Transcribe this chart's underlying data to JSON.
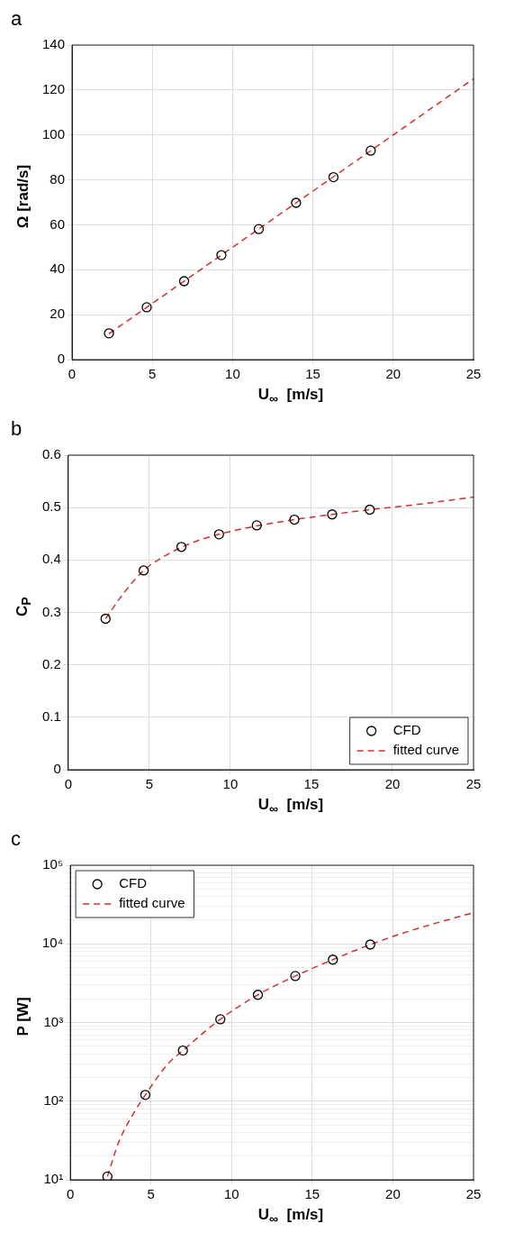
{
  "chart_data": [
    {
      "type": "scatter",
      "title": "a",
      "xlabel": "U$_{∞}$  [m/s]",
      "ylabel": "Ω [rad/s]",
      "xlim": [
        0,
        25
      ],
      "xticks": [
        0,
        5,
        10,
        15,
        20,
        25
      ],
      "ylim": [
        0,
        140
      ],
      "yticks": [
        0,
        20,
        40,
        60,
        80,
        100,
        120,
        140
      ],
      "grid": true,
      "legend": false,
      "series": [
        {
          "type": "scatter",
          "color": "#000000",
          "marker": "circle",
          "x": [
            2.3,
            4.65,
            6.98,
            9.3,
            11.63,
            13.95,
            16.28,
            18.6
          ],
          "values": [
            11.7,
            23.3,
            34.9,
            46.5,
            58.1,
            69.8,
            81.2,
            93
          ]
        },
        {
          "type": "line",
          "color": "#d03030",
          "line_style": "dashed",
          "marker": "none",
          "x": [
            2.3,
            25
          ],
          "values": [
            11.5,
            125
          ]
        }
      ]
    },
    {
      "type": "scatter",
      "title": "b",
      "xlabel": "U$_{∞}$  [m/s]",
      "ylabel": "C$_{P}$",
      "xlim": [
        0,
        25
      ],
      "xticks": [
        0,
        5,
        10,
        15,
        20,
        25
      ],
      "ylim": [
        0,
        0.6
      ],
      "yticks": [
        0,
        0.1,
        0.2,
        0.3,
        0.4,
        0.5,
        0.6
      ],
      "grid": true,
      "legend": "bottom right",
      "series": [
        {
          "name": "CFD",
          "type": "scatter",
          "color": "#000000",
          "marker": "circle",
          "x": [
            2.3,
            4.65,
            6.98,
            9.3,
            11.63,
            13.95,
            16.28,
            18.6
          ],
          "values": [
            0.288,
            0.38,
            0.425,
            0.449,
            0.466,
            0.477,
            0.487,
            0.496
          ]
        },
        {
          "name": "fitted curve",
          "type": "line",
          "color": "#d03030",
          "line_style": "dashed",
          "marker": "none",
          "x": [
            2.3,
            3.5,
            4.65,
            5.8,
            6.98,
            8,
            9.3,
            11.63,
            13.95,
            16.28,
            18.6,
            21,
            25
          ],
          "values": [
            0.288,
            0.34,
            0.38,
            0.405,
            0.424,
            0.437,
            0.449,
            0.465,
            0.477,
            0.487,
            0.496,
            0.504,
            0.52
          ]
        }
      ]
    },
    {
      "type": "scatter",
      "title": "c",
      "xlabel": "U$_{∞}$  [m/s]",
      "ylabel": "P [W]",
      "xlim": [
        0,
        25
      ],
      "xticks": [
        0,
        5,
        10,
        15,
        20,
        25
      ],
      "ylim": [
        10,
        100000
      ],
      "log": "y",
      "grid": true,
      "legend": "top left",
      "yticks": [
        {
          "value": 10,
          "label": "10¹"
        },
        {
          "value": 20,
          "label": null
        },
        {
          "value": 30,
          "label": null
        },
        {
          "value": 40,
          "label": null
        },
        {
          "value": 50,
          "label": null
        },
        {
          "value": 60,
          "label": null
        },
        {
          "value": 70,
          "label": null
        },
        {
          "value": 80,
          "label": null
        },
        {
          "value": 90,
          "label": null
        },
        {
          "value": 100,
          "label": "10²"
        },
        {
          "value": 200,
          "label": null
        },
        {
          "value": 300,
          "label": null
        },
        {
          "value": 400,
          "label": null
        },
        {
          "value": 500,
          "label": null
        },
        {
          "value": 600,
          "label": null
        },
        {
          "value": 700,
          "label": null
        },
        {
          "value": 800,
          "label": null
        },
        {
          "value": 900,
          "label": null
        },
        {
          "value": 1000,
          "label": "10³"
        },
        {
          "value": 2000,
          "label": null
        },
        {
          "value": 3000,
          "label": null
        },
        {
          "value": 4000,
          "label": null
        },
        {
          "value": 5000,
          "label": null
        },
        {
          "value": 6000,
          "label": null
        },
        {
          "value": 7000,
          "label": null
        },
        {
          "value": 8000,
          "label": null
        },
        {
          "value": 9000,
          "label": null
        },
        {
          "value": 10000,
          "label": "10⁴"
        },
        {
          "value": 20000,
          "label": null
        },
        {
          "value": 30000,
          "label": null
        },
        {
          "value": 40000,
          "label": null
        },
        {
          "value": 50000,
          "label": null
        },
        {
          "value": 60000,
          "label": null
        },
        {
          "value": 70000,
          "label": null
        },
        {
          "value": 80000,
          "label": null
        },
        {
          "value": 90000,
          "label": null
        },
        {
          "value": 100000,
          "label": "10⁵"
        }
      ],
      "series": [
        {
          "name": "CFD",
          "type": "scatter",
          "color": "#000000",
          "marker": "circle",
          "x": [
            2.3,
            4.65,
            6.98,
            9.3,
            11.63,
            13.95,
            16.28,
            18.6
          ],
          "values": [
            11,
            120,
            440,
            1100,
            2250,
            3900,
            6300,
            9800
          ]
        },
        {
          "name": "fitted curve",
          "type": "line",
          "color": "#d03030",
          "line_style": "dashed",
          "marker": "none",
          "x": [
            2.3,
            3,
            4,
            4.65,
            6,
            6.98,
            9.3,
            11.63,
            13.95,
            16.28,
            18.6,
            21,
            25
          ],
          "values": [
            11,
            30,
            75,
            120,
            290,
            440,
            1100,
            2250,
            3900,
            6300,
            9800,
            14500,
            25000
          ]
        }
      ]
    }
  ]
}
